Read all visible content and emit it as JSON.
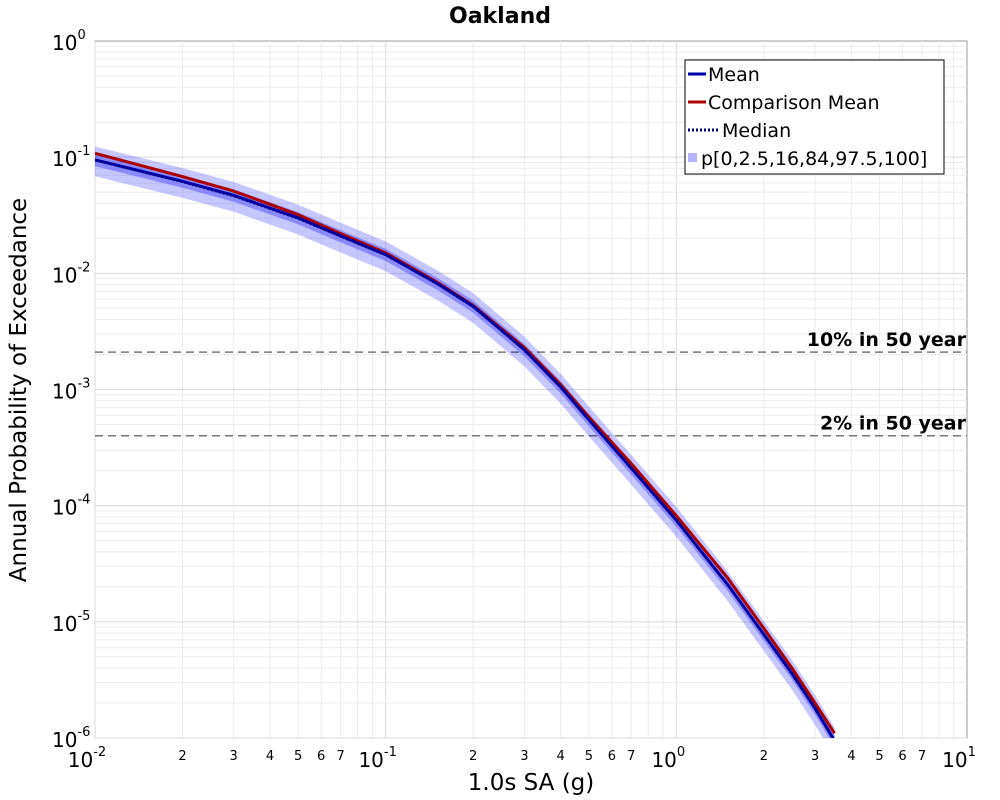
{
  "chart_data": {
    "type": "line",
    "title": "Oakland",
    "xlabel": "1.0s SA (g)",
    "ylabel": "Annual Probability of Exceedance",
    "x_scale": "log",
    "y_scale": "log",
    "xlim": [
      0.01,
      10
    ],
    "ylim": [
      1e-06,
      1
    ],
    "grid": true,
    "legend_position": "top-right",
    "x_major_ticks": [
      {
        "base": "10",
        "exp": "-2"
      },
      {
        "base": "10",
        "exp": "-1"
      },
      {
        "base": "10",
        "exp": "0"
      },
      {
        "base": "10",
        "exp": "1"
      }
    ],
    "y_major_ticks": [
      {
        "base": "10",
        "exp": "0"
      },
      {
        "base": "10",
        "exp": "-1"
      },
      {
        "base": "10",
        "exp": "-2"
      },
      {
        "base": "10",
        "exp": "-3"
      },
      {
        "base": "10",
        "exp": "-4"
      },
      {
        "base": "10",
        "exp": "-5"
      },
      {
        "base": "10",
        "exp": "-6"
      }
    ],
    "x_minor_labels": [
      "2",
      "3",
      "4",
      "5",
      "6",
      "7"
    ],
    "x": [
      0.01,
      0.02,
      0.03,
      0.05,
      0.07,
      0.1,
      0.15,
      0.2,
      0.3,
      0.4,
      0.5,
      0.7,
      1.0,
      1.5,
      2.0,
      2.5,
      3.0,
      3.5
    ],
    "series": [
      {
        "name": "Mean",
        "color": "#0000aa",
        "style": "solid",
        "values": [
          0.095,
          0.062,
          0.047,
          0.03,
          0.021,
          0.0145,
          0.0082,
          0.0052,
          0.0022,
          0.00105,
          0.00055,
          0.00021,
          7.5e-05,
          2.1e-05,
          7.8e-06,
          3.6e-06,
          1.8e-06,
          9.5e-07
        ]
      },
      {
        "name": "Comparison Mean",
        "color": "#aa0000",
        "style": "solid",
        "values": [
          0.108,
          0.068,
          0.051,
          0.032,
          0.022,
          0.015,
          0.0084,
          0.0053,
          0.0023,
          0.0011,
          0.00058,
          0.00023,
          8.2e-05,
          2.4e-05,
          8.8e-06,
          4e-06,
          2e-06,
          1.1e-06
        ]
      },
      {
        "name": "Median",
        "color": "#000088",
        "style": "dotted",
        "values": [
          0.094,
          0.061,
          0.046,
          0.0295,
          0.0207,
          0.0143,
          0.0081,
          0.0051,
          0.00218,
          0.00104,
          0.000545,
          0.000208,
          7.4e-05,
          2.08e-05,
          7.7e-06,
          3.5e-06,
          1.8e-06,
          9.3e-07
        ]
      }
    ],
    "band": {
      "name": "p[0,2.5,16,84,97.5,100]",
      "color": "#0000ff",
      "inner_lower_factor": 0.88,
      "inner_upper_factor": 1.12,
      "outer_lower_factor": 0.72,
      "outer_upper_factor": 1.3
    },
    "reference_lines": [
      {
        "label": "10% in 50 year",
        "y": 0.0021
      },
      {
        "label": "2% in 50 year",
        "y": 0.0004
      }
    ]
  }
}
